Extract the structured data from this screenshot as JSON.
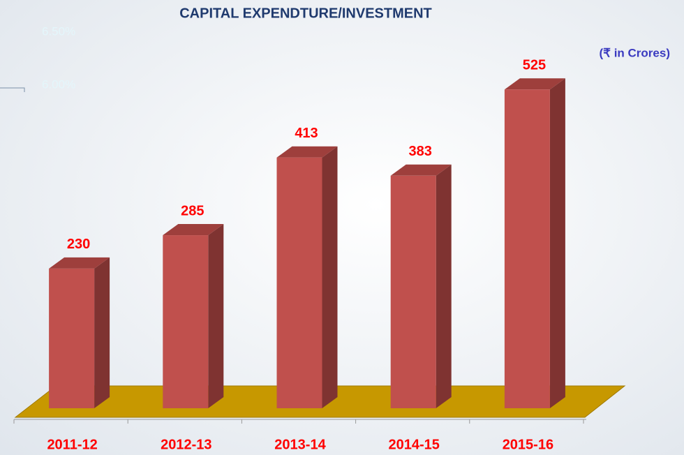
{
  "chart_data": {
    "type": "bar3d",
    "title": "CAPITAL EXPENDTURE/INVESTMENT",
    "subtitle": "(₹ in Crores)",
    "annotations": [
      "6.50%",
      "6.00%"
    ],
    "categories": [
      "2011-12",
      "2012-13",
      "2013-14",
      "2014-15",
      "2015-16"
    ],
    "values": [
      230,
      285,
      413,
      383,
      525
    ],
    "color": "#c0504d"
  }
}
